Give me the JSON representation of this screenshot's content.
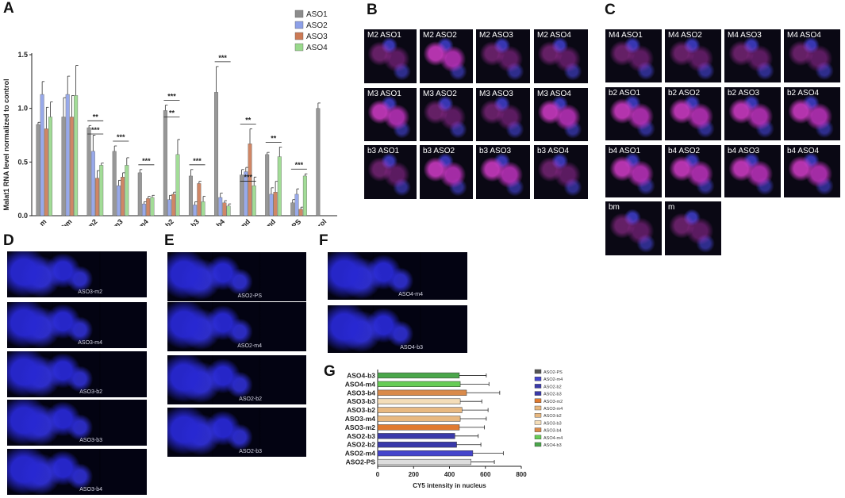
{
  "panels": {
    "A": "A",
    "B": "B",
    "C": "C",
    "D": "D",
    "E": "E",
    "F": "F",
    "G": "G"
  },
  "chart_data": [
    {
      "panel": "A",
      "type": "bar",
      "ylabel": "Malat1 RNA level normalized to control",
      "ylim": [
        0,
        1.5
      ],
      "yticks": [
        "0.0",
        "0.5",
        "1.0",
        "1.5"
      ],
      "categories": [
        "m",
        "bm",
        "m2",
        "m3",
        "m4",
        "b2",
        "b3",
        "b4",
        "md",
        "bmd",
        "PS",
        "control"
      ],
      "series": [
        {
          "name": "ASO1",
          "color": "#8c8c8c",
          "values": [
            0.85,
            0.92,
            0.82,
            0.6,
            0.4,
            0.98,
            0.37,
            1.15,
            0.38,
            0.57,
            0.12,
            1.0
          ],
          "errors": [
            0.02,
            0.18,
            0.02,
            0.05,
            0.03,
            0.05,
            0.06,
            0.24,
            0.05,
            0.02,
            0.03,
            0.05
          ]
        },
        {
          "name": "ASO2",
          "color": "#8da0e8",
          "values": [
            1.13,
            1.13,
            0.6,
            0.28,
            0.11,
            0.15,
            0.1,
            0.17,
            0.41,
            0.2,
            0.2,
            null
          ],
          "errors": [
            0.12,
            0.17,
            0.15,
            0.05,
            0.02,
            0.04,
            0.03,
            0.04,
            0.04,
            0.06,
            0.05,
            null
          ]
        },
        {
          "name": "ASO3",
          "color": "#cc7a55",
          "values": [
            0.81,
            0.92,
            0.35,
            0.36,
            0.16,
            0.2,
            0.3,
            0.12,
            0.67,
            0.22,
            0.06,
            null
          ],
          "errors": [
            0.2,
            0.2,
            0.07,
            0.04,
            0.02,
            0.02,
            0.02,
            0.02,
            0.14,
            0.1,
            0.02,
            null
          ]
        },
        {
          "name": "ASO4",
          "color": "#99d98c",
          "values": [
            0.92,
            1.12,
            0.47,
            0.47,
            0.17,
            0.57,
            0.13,
            0.09,
            0.28,
            0.55,
            0.37,
            null
          ],
          "errors": [
            0.14,
            0.28,
            0.02,
            0.07,
            0.02,
            0.14,
            0.05,
            0.02,
            0.08,
            0.09,
            0.02,
            null
          ]
        }
      ],
      "significance": [
        {
          "category": "m2",
          "marks": [
            "**",
            "***"
          ]
        },
        {
          "category": "m3",
          "marks": [
            "***"
          ]
        },
        {
          "category": "m4",
          "marks": [
            "***"
          ]
        },
        {
          "category": "b2",
          "marks": [
            "***",
            "**"
          ]
        },
        {
          "category": "b3",
          "marks": [
            "***"
          ]
        },
        {
          "category": "b4",
          "marks": [
            "***"
          ]
        },
        {
          "category": "md",
          "marks": [
            "**",
            "***"
          ]
        },
        {
          "category": "bmd",
          "marks": [
            "**"
          ]
        },
        {
          "category": "PS",
          "marks": [
            "***"
          ]
        }
      ],
      "legend_position": "top-right"
    },
    {
      "panel": "G",
      "type": "bar",
      "orientation": "horizontal",
      "xlabel": "CY5 intensity in nucleus",
      "xlim": [
        0,
        800
      ],
      "xticks": [
        "0",
        "200",
        "400",
        "600",
        "800"
      ],
      "categories": [
        "ASO4-b3",
        "ASO4-m4",
        "ASO3-b4",
        "ASO3-b3",
        "ASO3-b2",
        "ASO3-m4",
        "ASO3-m2",
        "ASO2-b3",
        "ASO2-b2",
        "ASO2-m4",
        "ASO2-PS"
      ],
      "values": [
        455,
        460,
        495,
        460,
        470,
        460,
        455,
        430,
        440,
        530,
        520
      ],
      "errors": [
        150,
        160,
        185,
        120,
        145,
        145,
        140,
        130,
        135,
        170,
        130
      ],
      "colors": [
        "#4aa64a",
        "#66cc55",
        "#d98a4a",
        "#f4ddb8",
        "#e8b880",
        "#e8b880",
        "#e07a30",
        "#3a3aaa",
        "#3a3aaa",
        "#4444cc",
        "#dddddd"
      ],
      "legend": [
        "ASO2-PS",
        "ASO2-m4",
        "ASO2-b2",
        "ASO2-b3",
        "ASO3-m2",
        "ASO3-m4",
        "ASO3-b2",
        "ASO3-b3",
        "ASO3-b4",
        "ASO4-m4",
        "ASO4-b3"
      ],
      "legend_colors": [
        "#555555",
        "#4444cc",
        "#3a3aaa",
        "#3a3aaa",
        "#e07a30",
        "#e8b880",
        "#e8b880",
        "#f4ddb8",
        "#d98a4a",
        "#66cc55",
        "#4aa64a"
      ],
      "legend_position": "right"
    }
  ],
  "images": {
    "B": [
      "M2 ASO1",
      "M2 ASO2",
      "M2 ASO3",
      "M2 ASO4",
      "M3 ASO1",
      "M3 ASO2",
      "M3 ASO3",
      "M3 ASO4",
      "b3 ASO1",
      "b3 ASO2",
      "b3 ASO3",
      "b3 ASO4"
    ],
    "C": [
      "M4 ASO1",
      "M4 ASO2",
      "M4 ASO3",
      "M4 ASO4",
      "b2 ASO1",
      "b2 ASO2",
      "b2 ASO3",
      "b2 ASO4",
      "b4 ASO1",
      "b4 ASO2",
      "b4 ASO3",
      "b4 ASO4",
      "bm",
      "m"
    ],
    "D": [
      "ASO3-m2",
      "ASO3-m4",
      "ASO3-b2",
      "ASO3-b3",
      "ASO3-b4"
    ],
    "E": [
      "ASO2-PS",
      "ASO2-m4",
      "ASO2-b2",
      "ASO2-b3"
    ],
    "F": [
      "ASO4-m4",
      "ASO4-b3"
    ]
  }
}
